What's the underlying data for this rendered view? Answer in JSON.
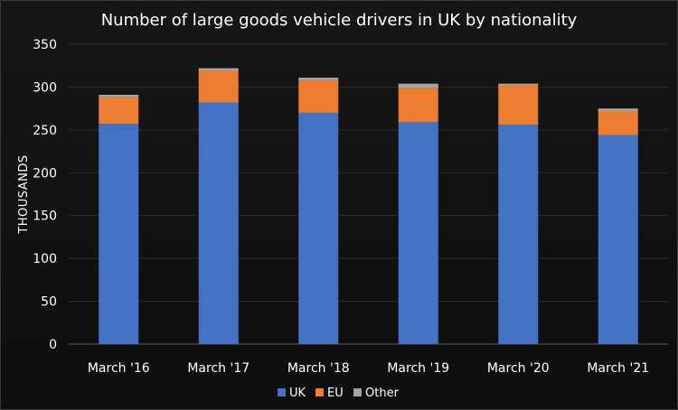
{
  "chart_data": {
    "type": "bar",
    "stacked": true,
    "title": "Number of large goods vehicle drivers in UK by nationality",
    "xlabel": "",
    "ylabel": "THOUSANDS",
    "ylim": [
      0,
      350
    ],
    "yticks": [
      0,
      50,
      100,
      150,
      200,
      250,
      300,
      350
    ],
    "grid": true,
    "legend_position": "bottom",
    "categories": [
      "March '16",
      "March '17",
      "March '18",
      "March '19",
      "March '20",
      "March '21"
    ],
    "series": [
      {
        "name": "UK",
        "color": "#4472c4",
        "values": [
          257,
          282,
          270,
          259,
          256,
          244
        ]
      },
      {
        "name": "EU",
        "color": "#ed7d31",
        "values": [
          31,
          37,
          38,
          40,
          46,
          28
        ]
      },
      {
        "name": "Other",
        "color": "#a5a5a5",
        "values": [
          3,
          3,
          3,
          5,
          2,
          3
        ]
      }
    ]
  }
}
